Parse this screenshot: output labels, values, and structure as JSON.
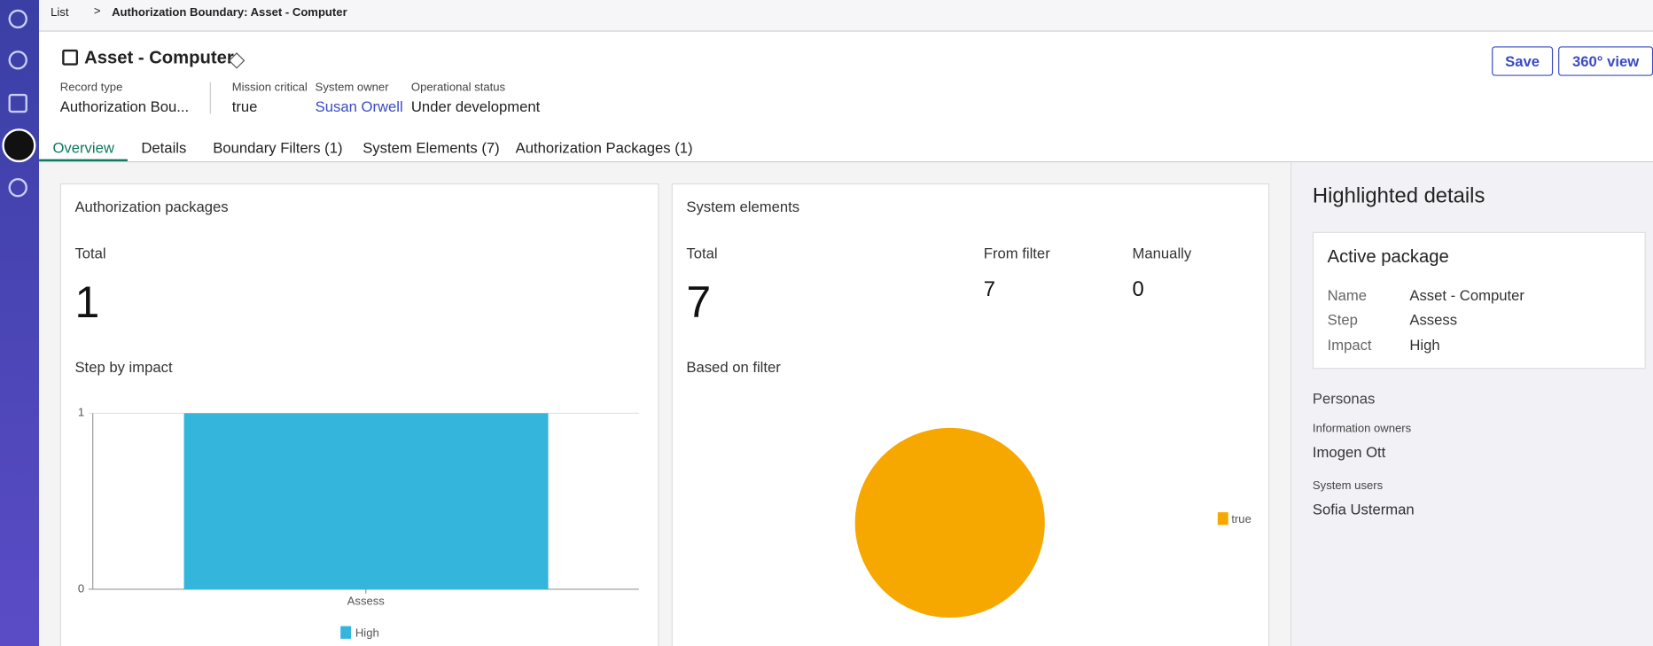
{
  "breadcrumb": {
    "list": "List",
    "current": "Authorization Boundary: Asset - Computer"
  },
  "header": {
    "title": "Asset - Computer",
    "fields": [
      {
        "label": "Record type",
        "value": "Authorization Bou..."
      },
      {
        "label": "Mission critical",
        "value": "true"
      },
      {
        "label": "System owner",
        "value": "Susan Orwell"
      },
      {
        "label": "Operational status",
        "value": "Under development"
      }
    ],
    "buttons": [
      "Save",
      "360° view"
    ]
  },
  "tabs": [
    "Overview",
    "Details",
    "Boundary Filters (1)",
    "System Elements (7)",
    "Authorization Packages (1)"
  ],
  "auth_packages": {
    "title": "Authorization packages",
    "total_label": "Total",
    "total": 1,
    "chart_title": "Step by impact",
    "chart": {
      "type": "bar",
      "categories": [
        "Assess"
      ],
      "series": [
        {
          "name": "High",
          "color": "#33b5dc",
          "values": [
            1
          ]
        }
      ],
      "ylim": [
        0,
        1
      ],
      "yticks": [
        0,
        1
      ]
    }
  },
  "system_elements": {
    "title": "System elements",
    "total_label": "Total",
    "total": 7,
    "from_filter_label": "From filter",
    "from_filter": 7,
    "manually_label": "Manually",
    "manually": 0,
    "chart_title": "Based on filter",
    "chart": {
      "type": "pie",
      "categories": [
        "true"
      ],
      "values": [
        7
      ],
      "colors": [
        "#f7a800"
      ]
    }
  },
  "highlighted": {
    "title": "Highlighted details",
    "card_title": "Active package",
    "rows": [
      {
        "label": "Name",
        "value": "Asset - Computer"
      },
      {
        "label": "Step",
        "value": "Assess"
      },
      {
        "label": "Impact",
        "value": "High"
      }
    ],
    "personas_title": "Personas",
    "personas": [
      {
        "role": "Information owners",
        "name": "Imogen Ott"
      },
      {
        "role": "System users",
        "name": "Sofia Usterman"
      }
    ]
  }
}
